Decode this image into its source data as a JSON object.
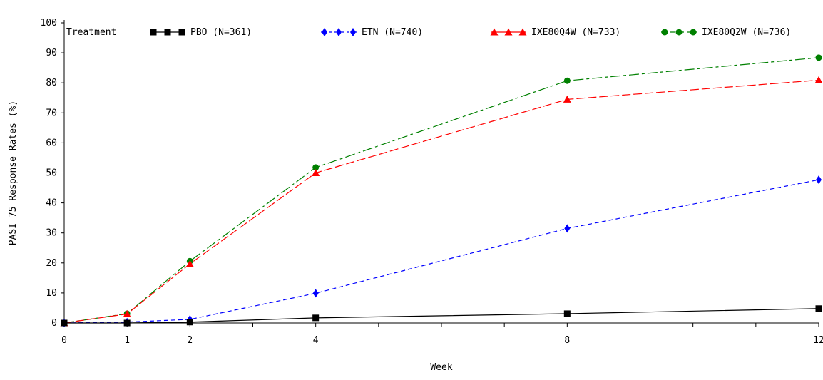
{
  "chart_data": {
    "type": "line",
    "xlabel": "Week",
    "ylabel": "PASI 75 Response Rates (%)",
    "xlim": [
      0,
      12
    ],
    "ylim": [
      0,
      100
    ],
    "x_ticks": [
      0,
      1,
      2,
      4,
      8,
      12
    ],
    "y_ticks": [
      0,
      10,
      20,
      30,
      40,
      50,
      60,
      70,
      80,
      90,
      100
    ],
    "legend_title": "Treatment",
    "legend_position": "top",
    "grid": false,
    "series": [
      {
        "name": "PBO (N=361)",
        "color": "#000000",
        "marker": "square",
        "line_style": "solid",
        "x": [
          0,
          1,
          2,
          4,
          8,
          12
        ],
        "y": [
          0,
          0,
          0.3,
          1.7,
          3.1,
          4.8
        ]
      },
      {
        "name": "ETN (N=740)",
        "color": "#0000ff",
        "marker": "diamond",
        "line_style": "dashed",
        "x": [
          0,
          1,
          2,
          4,
          8,
          12
        ],
        "y": [
          0,
          0.3,
          1.2,
          9.9,
          31.5,
          47.7
        ]
      },
      {
        "name": "IXE80Q4W (N=733)",
        "color": "#ff0000",
        "marker": "triangle",
        "line_style": "longdash",
        "x": [
          0,
          1,
          2,
          4,
          8,
          12
        ],
        "y": [
          0,
          3.0,
          19.7,
          50.0,
          74.5,
          80.9
        ]
      },
      {
        "name": "IXE80Q2W (N=736)",
        "color": "#008000",
        "marker": "circle",
        "line_style": "dashdot",
        "x": [
          0,
          1,
          2,
          4,
          8,
          12
        ],
        "y": [
          0,
          3.1,
          20.6,
          51.8,
          80.7,
          88.4
        ]
      }
    ]
  }
}
